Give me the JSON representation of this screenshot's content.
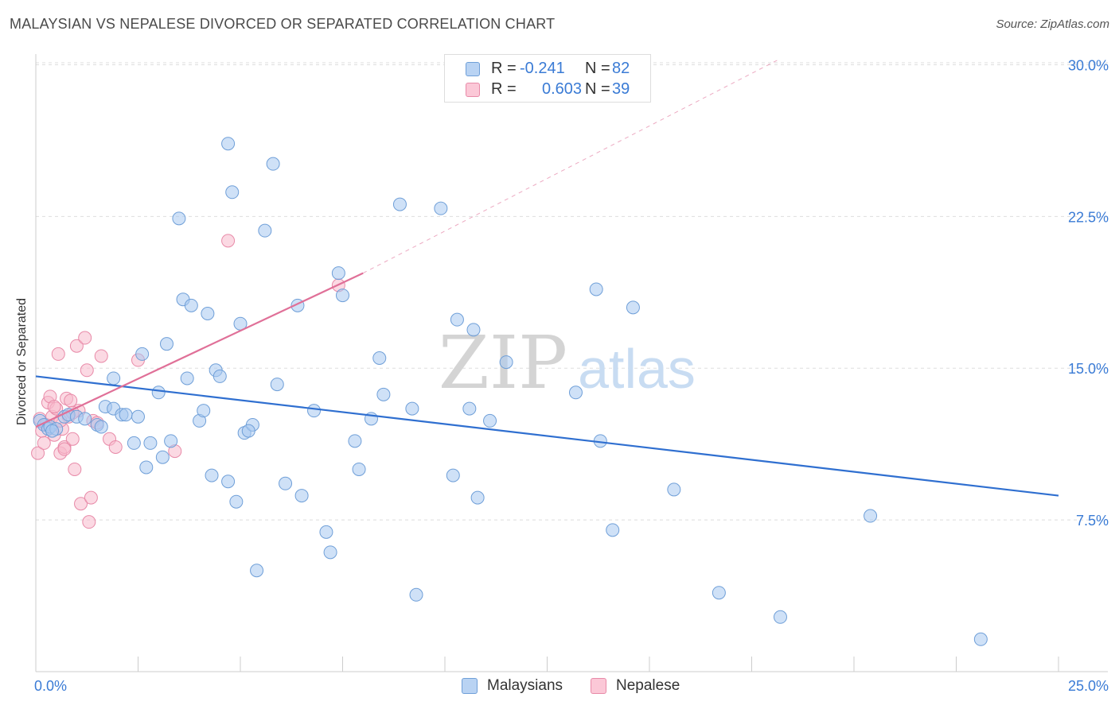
{
  "title": "MALAYSIAN VS NEPALESE DIVORCED OR SEPARATED CORRELATION CHART",
  "source": "Source: ZipAtlas.com",
  "watermark": {
    "zip": "ZIP",
    "atlas": "atlas"
  },
  "legend": [
    {
      "r_label": "R =",
      "r_value": "-0.241",
      "n_label": "N =",
      "n_value": "82"
    },
    {
      "r_label": "R =",
      "r_value": "0.603",
      "n_label": "N =",
      "n_value": "39"
    }
  ],
  "colors": {
    "malaysian_fill": "#a8c8f0",
    "malaysian_stroke": "#6f9fd8",
    "malaysian_line": "#2f6fd0",
    "nepalese_fill": "#f7b9cc",
    "nepalese_stroke": "#e88aa8",
    "nepalese_line": "#e07098",
    "tick_label": "#3a7bd5",
    "grid": "#dddddd"
  },
  "chart_data": {
    "type": "scatter",
    "title": "MALAYSIAN VS NEPALESE DIVORCED OR SEPARATED CORRELATION CHART",
    "xlabel": "",
    "ylabel": "Divorced or Separated",
    "xlim": [
      0,
      25
    ],
    "ylim": [
      0,
      31
    ],
    "x_tick_labels": [
      "0.0%",
      "25.0%"
    ],
    "y_ticks": [
      7.5,
      15.0,
      22.5,
      30.0
    ],
    "y_tick_labels": [
      "7.5%",
      "15.0%",
      "22.5%",
      "30.0%"
    ],
    "series": [
      {
        "name": "Malaysians",
        "r": -0.241,
        "n": 82,
        "trend": {
          "x": [
            0,
            25
          ],
          "y": [
            14.6,
            8.7
          ]
        },
        "points": [
          [
            0.1,
            12.4
          ],
          [
            0.2,
            12.2
          ],
          [
            0.3,
            12.0
          ],
          [
            0.35,
            12.1
          ],
          [
            0.5,
            12.0
          ],
          [
            0.4,
            11.9
          ],
          [
            0.7,
            12.6
          ],
          [
            0.8,
            12.7
          ],
          [
            1.0,
            12.6
          ],
          [
            1.2,
            12.5
          ],
          [
            1.5,
            12.2
          ],
          [
            1.7,
            13.1
          ],
          [
            1.6,
            12.1
          ],
          [
            1.9,
            13.0
          ],
          [
            2.1,
            12.7
          ],
          [
            2.2,
            12.7
          ],
          [
            2.5,
            12.6
          ],
          [
            1.9,
            14.5
          ],
          [
            2.6,
            15.7
          ],
          [
            2.4,
            11.3
          ],
          [
            2.7,
            10.1
          ],
          [
            3.0,
            13.8
          ],
          [
            2.8,
            11.3
          ],
          [
            3.1,
            10.6
          ],
          [
            3.2,
            16.2
          ],
          [
            3.3,
            11.4
          ],
          [
            3.5,
            22.4
          ],
          [
            3.6,
            18.4
          ],
          [
            3.7,
            14.5
          ],
          [
            3.8,
            18.1
          ],
          [
            4.0,
            12.4
          ],
          [
            4.1,
            12.9
          ],
          [
            4.2,
            17.7
          ],
          [
            4.3,
            9.7
          ],
          [
            4.4,
            14.9
          ],
          [
            4.5,
            14.6
          ],
          [
            4.7,
            9.4
          ],
          [
            4.7,
            26.1
          ],
          [
            4.8,
            23.7
          ],
          [
            4.9,
            8.4
          ],
          [
            5.0,
            17.2
          ],
          [
            5.1,
            11.8
          ],
          [
            5.3,
            12.2
          ],
          [
            5.4,
            5.0
          ],
          [
            5.6,
            21.8
          ],
          [
            5.8,
            25.1
          ],
          [
            5.9,
            14.2
          ],
          [
            6.1,
            9.3
          ],
          [
            6.4,
            18.1
          ],
          [
            6.5,
            8.7
          ],
          [
            7.1,
            6.9
          ],
          [
            7.2,
            5.9
          ],
          [
            7.4,
            19.7
          ],
          [
            7.5,
            18.6
          ],
          [
            7.8,
            11.4
          ],
          [
            7.9,
            10.0
          ],
          [
            8.2,
            12.5
          ],
          [
            8.4,
            15.5
          ],
          [
            8.5,
            13.7
          ],
          [
            8.9,
            23.1
          ],
          [
            9.2,
            13.0
          ],
          [
            9.3,
            3.8
          ],
          [
            9.9,
            22.9
          ],
          [
            10.2,
            9.7
          ],
          [
            10.3,
            17.4
          ],
          [
            10.6,
            13.0
          ],
          [
            10.7,
            16.9
          ],
          [
            10.8,
            8.6
          ],
          [
            11.5,
            15.3
          ],
          [
            13.2,
            13.8
          ],
          [
            13.7,
            18.9
          ],
          [
            13.8,
            11.4
          ],
          [
            14.1,
            7.0
          ],
          [
            14.6,
            18.0
          ],
          [
            15.6,
            9.0
          ],
          [
            16.7,
            3.9
          ],
          [
            18.2,
            2.7
          ],
          [
            20.4,
            7.7
          ],
          [
            23.1,
            1.6
          ],
          [
            11.1,
            12.4
          ],
          [
            6.8,
            12.9
          ],
          [
            5.2,
            11.9
          ]
        ]
      },
      {
        "name": "Nepalese",
        "r": 0.603,
        "n": 39,
        "trend": {
          "x": [
            0,
            8
          ],
          "y": [
            12.1,
            19.7
          ]
        },
        "trend_extension": {
          "x": [
            8,
            18.2
          ],
          "y": [
            19.7,
            30.3
          ]
        },
        "points": [
          [
            0.05,
            10.8
          ],
          [
            0.1,
            12.5
          ],
          [
            0.15,
            11.9
          ],
          [
            0.2,
            11.3
          ],
          [
            0.25,
            12.2
          ],
          [
            0.3,
            13.3
          ],
          [
            0.35,
            13.6
          ],
          [
            0.4,
            12.6
          ],
          [
            0.45,
            11.7
          ],
          [
            0.5,
            13.0
          ],
          [
            0.55,
            15.7
          ],
          [
            0.6,
            10.8
          ],
          [
            0.65,
            12.0
          ],
          [
            0.7,
            11.1
          ],
          [
            0.75,
            13.5
          ],
          [
            0.8,
            12.6
          ],
          [
            0.85,
            13.4
          ],
          [
            0.9,
            11.5
          ],
          [
            0.95,
            10.0
          ],
          [
            1.0,
            16.1
          ],
          [
            1.05,
            12.9
          ],
          [
            1.1,
            8.3
          ],
          [
            1.2,
            16.5
          ],
          [
            1.25,
            14.9
          ],
          [
            1.3,
            7.4
          ],
          [
            1.35,
            8.6
          ],
          [
            1.4,
            12.4
          ],
          [
            1.5,
            12.3
          ],
          [
            1.6,
            15.6
          ],
          [
            1.8,
            11.5
          ],
          [
            1.95,
            11.1
          ],
          [
            2.5,
            15.4
          ],
          [
            3.4,
            10.9
          ],
          [
            4.7,
            21.3
          ],
          [
            7.4,
            19.1
          ],
          [
            0.45,
            13.1
          ],
          [
            0.6,
            12.4
          ],
          [
            0.9,
            12.8
          ],
          [
            0.7,
            11.0
          ]
        ]
      }
    ]
  },
  "bottom_legend": [
    {
      "label": "Malaysians"
    },
    {
      "label": "Nepalese"
    }
  ]
}
